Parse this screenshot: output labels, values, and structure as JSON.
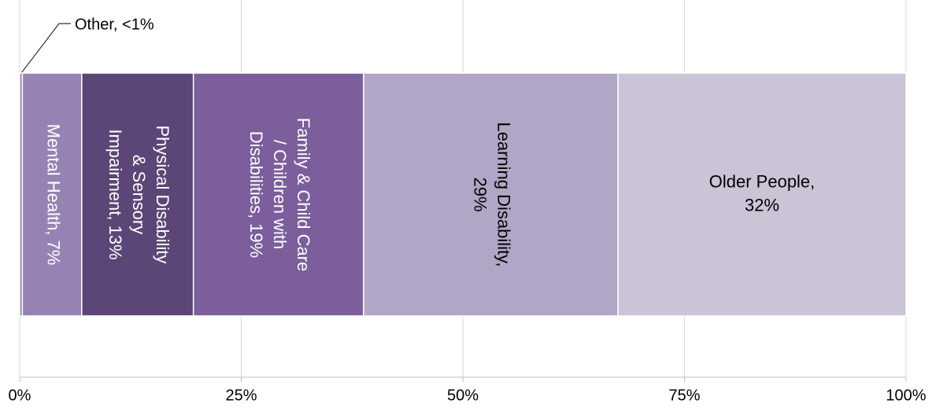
{
  "chart_data": {
    "type": "stacked_bar_100",
    "series": [
      {
        "label_lines": [
          "Other, <1%"
        ],
        "color": "#8e7bab",
        "values": [
          0.3
        ],
        "text_color": "#000000",
        "rotated": false
      },
      {
        "label_lines": [
          "Mental Health, 7%"
        ],
        "color": "#9683b4",
        "values": [
          6.7
        ],
        "text_color": "#ffffff",
        "rotated": true
      },
      {
        "label_lines": [
          "Physical Disability",
          "& Sensory",
          "Impairment, 13%"
        ],
        "color": "#5c4677",
        "values": [
          12.6
        ],
        "text_color": "#ffffff",
        "rotated": true
      },
      {
        "label_lines": [
          "Family & Child Care",
          "/ Children with",
          "Disabilities, 19%"
        ],
        "color": "#7b5e9b",
        "values": [
          19.2
        ],
        "text_color": "#ffffff",
        "rotated": true
      },
      {
        "label_lines": [
          "Learning Disability,",
          "29%"
        ],
        "color": "#b1a6c5",
        "values": [
          28.7
        ],
        "text_color": "#000000",
        "rotated": true
      },
      {
        "label_lines": [
          "Older People,",
          "32%"
        ],
        "color": "#cbc3d6",
        "values": [
          32.5
        ],
        "text_color": "#000000",
        "rotated": false
      }
    ],
    "xlim": [
      0,
      100
    ],
    "xticks": [
      {
        "value": 0,
        "label": "0%"
      },
      {
        "value": 25,
        "label": "25%"
      },
      {
        "value": 50,
        "label": "50%"
      },
      {
        "value": 75,
        "label": "75%"
      },
      {
        "value": 100,
        "label": "100%"
      }
    ],
    "grid": true
  }
}
